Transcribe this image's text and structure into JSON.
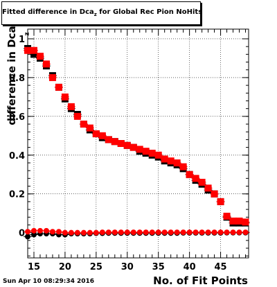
{
  "title": {
    "prefix": "Fitted difference in Dca",
    "sub": "z",
    "suffix": " for Global Rec Pion NoHits"
  },
  "datestamp": "Sun Apr 10 08:29:34 2016",
  "chart_data": {
    "type": "scatter",
    "title": "Fitted difference in Dca_z for Global Rec Pion NoHits",
    "xlabel": "No. of Fit Points",
    "ylabel": "difference in Dca",
    "ylabel_sub": "z",
    "xlim": [
      14,
      49.5
    ],
    "ylim": [
      -0.13,
      1.05
    ],
    "xticks": [
      15,
      20,
      25,
      30,
      35,
      40,
      45
    ],
    "yticks": [
      0,
      0.2,
      0.4,
      0.6,
      0.8,
      1
    ],
    "ytick_labels": [
      "0",
      "0.2",
      "0.4",
      "0.6",
      "0.8",
      "1"
    ],
    "grid": true,
    "series": [
      {
        "color": "#000000",
        "marker": "square",
        "x": [
          14,
          15,
          16,
          17,
          18,
          19,
          20,
          21,
          22,
          23,
          24,
          25,
          26,
          27,
          28,
          29,
          30,
          31,
          32,
          33,
          34,
          35,
          36,
          37,
          38,
          39,
          40,
          41,
          42,
          43,
          44,
          45,
          46,
          47,
          48,
          49
        ],
        "y": [
          0.95,
          0.92,
          0.9,
          0.86,
          0.81,
          0.75,
          0.69,
          0.64,
          0.61,
          0.56,
          0.53,
          0.51,
          0.49,
          0.48,
          0.47,
          0.46,
          0.45,
          0.44,
          0.42,
          0.41,
          0.4,
          0.39,
          0.37,
          0.36,
          0.35,
          0.33,
          0.3,
          0.27,
          0.25,
          0.22,
          0.2,
          0.16,
          0.08,
          0.05,
          0.05,
          0.05
        ]
      },
      {
        "color": "#ff0000",
        "marker": "square",
        "x": [
          14,
          15,
          16,
          17,
          18,
          19,
          20,
          21,
          22,
          23,
          24,
          25,
          26,
          27,
          28,
          29,
          30,
          31,
          32,
          33,
          34,
          35,
          36,
          37,
          38,
          39,
          40,
          41,
          42,
          43,
          44,
          45,
          46,
          47,
          48,
          49
        ],
        "y": [
          0.94,
          0.94,
          0.91,
          0.87,
          0.8,
          0.75,
          0.7,
          0.65,
          0.6,
          0.56,
          0.54,
          0.51,
          0.5,
          0.48,
          0.47,
          0.46,
          0.45,
          0.44,
          0.43,
          0.42,
          0.41,
          0.4,
          0.38,
          0.37,
          0.36,
          0.34,
          0.3,
          0.28,
          0.26,
          0.23,
          0.2,
          0.16,
          0.085,
          0.06,
          0.06,
          0.055
        ]
      },
      {
        "color": "#000000",
        "marker": "circle",
        "x": [
          14,
          15,
          16,
          17,
          18,
          19,
          20,
          21,
          22,
          23,
          24,
          25,
          26,
          27,
          28,
          29,
          30,
          31,
          32,
          33,
          34,
          35,
          36,
          37,
          38,
          39,
          40,
          41,
          42,
          43,
          44,
          45,
          46,
          47,
          48,
          49
        ],
        "y": [
          -0.02,
          -0.01,
          -0.005,
          -0.005,
          -0.005,
          -0.01,
          -0.01,
          -0.005,
          -0.005,
          -0.005,
          -0.005,
          -0.003,
          -0.003,
          -0.002,
          -0.002,
          -0.002,
          -0.002,
          -0.002,
          -0.002,
          -0.002,
          -0.002,
          -0.002,
          -0.002,
          -0.002,
          -0.002,
          -0.001,
          -0.001,
          -0.001,
          -0.001,
          -0.001,
          -0.001,
          -0.001,
          0,
          0,
          0,
          0
        ]
      },
      {
        "color": "#ff0000",
        "marker": "circle",
        "x": [
          14,
          15,
          16,
          17,
          18,
          19,
          20,
          21,
          22,
          23,
          24,
          25,
          26,
          27,
          28,
          29,
          30,
          31,
          32,
          33,
          34,
          35,
          36,
          37,
          38,
          39,
          40,
          41,
          42,
          43,
          44,
          45,
          46,
          47,
          48,
          49
        ],
        "y": [
          0.005,
          0.01,
          0.01,
          0.01,
          0.005,
          0.005,
          0.0,
          0.0,
          0.0,
          0.0,
          0.0,
          0.0,
          0.002,
          0.002,
          0.002,
          0.002,
          0.002,
          0.002,
          0.002,
          0.002,
          0.002,
          0.002,
          0.002,
          0.002,
          0.002,
          0.002,
          0.002,
          0.002,
          0.002,
          0.002,
          0.002,
          0.002,
          0.002,
          0.002,
          0.002,
          0.002
        ]
      }
    ]
  }
}
